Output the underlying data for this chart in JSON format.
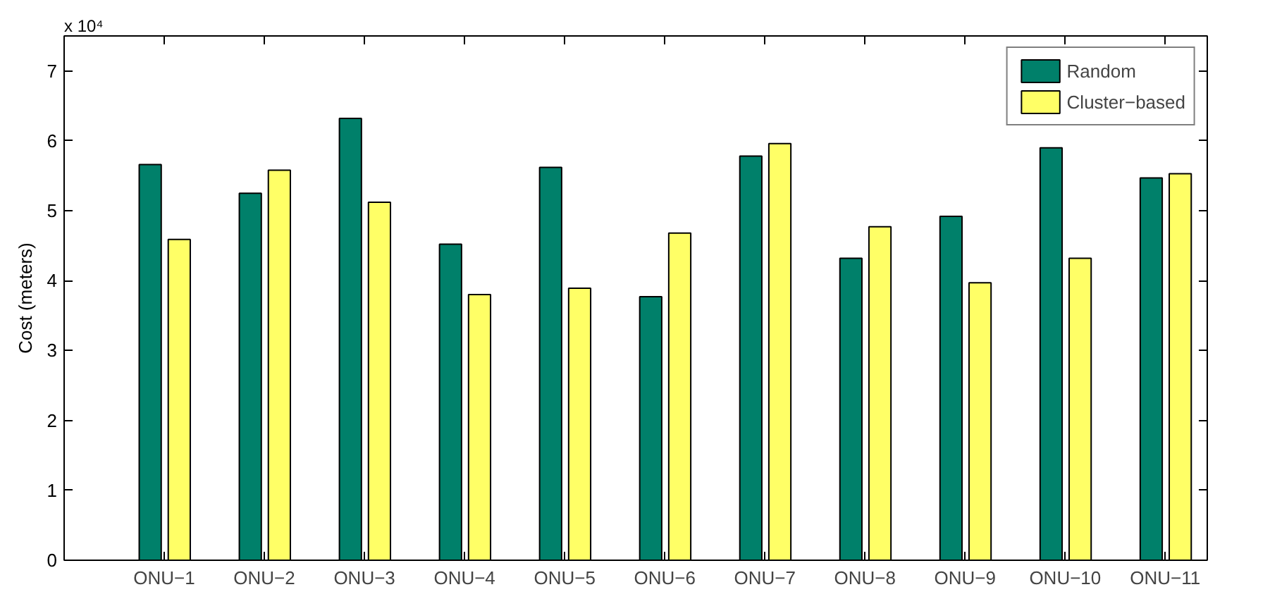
{
  "chart_data": {
    "type": "bar",
    "ylabel": "Cost (meters)",
    "annotations": [
      "x 10⁴"
    ],
    "categories": [
      "ONU−1",
      "ONU−2",
      "ONU−3",
      "ONU−4",
      "ONU−5",
      "ONU−6",
      "ONU−7",
      "ONU−8",
      "ONU−9",
      "ONU−10",
      "ONU−11"
    ],
    "series": [
      {
        "name": "Random",
        "color": "#00806a",
        "values": [
          5.66,
          5.25,
          6.32,
          4.52,
          5.62,
          3.77,
          5.78,
          4.32,
          4.92,
          5.9,
          5.47
        ]
      },
      {
        "name": "Cluster−based",
        "color": "#ffff66",
        "values": [
          4.59,
          5.58,
          5.12,
          3.8,
          3.89,
          4.68,
          5.96,
          4.77,
          3.97,
          4.32,
          5.53
        ]
      }
    ],
    "ylim": [
      0,
      7.5
    ],
    "yticks": [
      0,
      1,
      2,
      3,
      4,
      5,
      6,
      7
    ],
    "grid": false,
    "legend": "top right"
  }
}
